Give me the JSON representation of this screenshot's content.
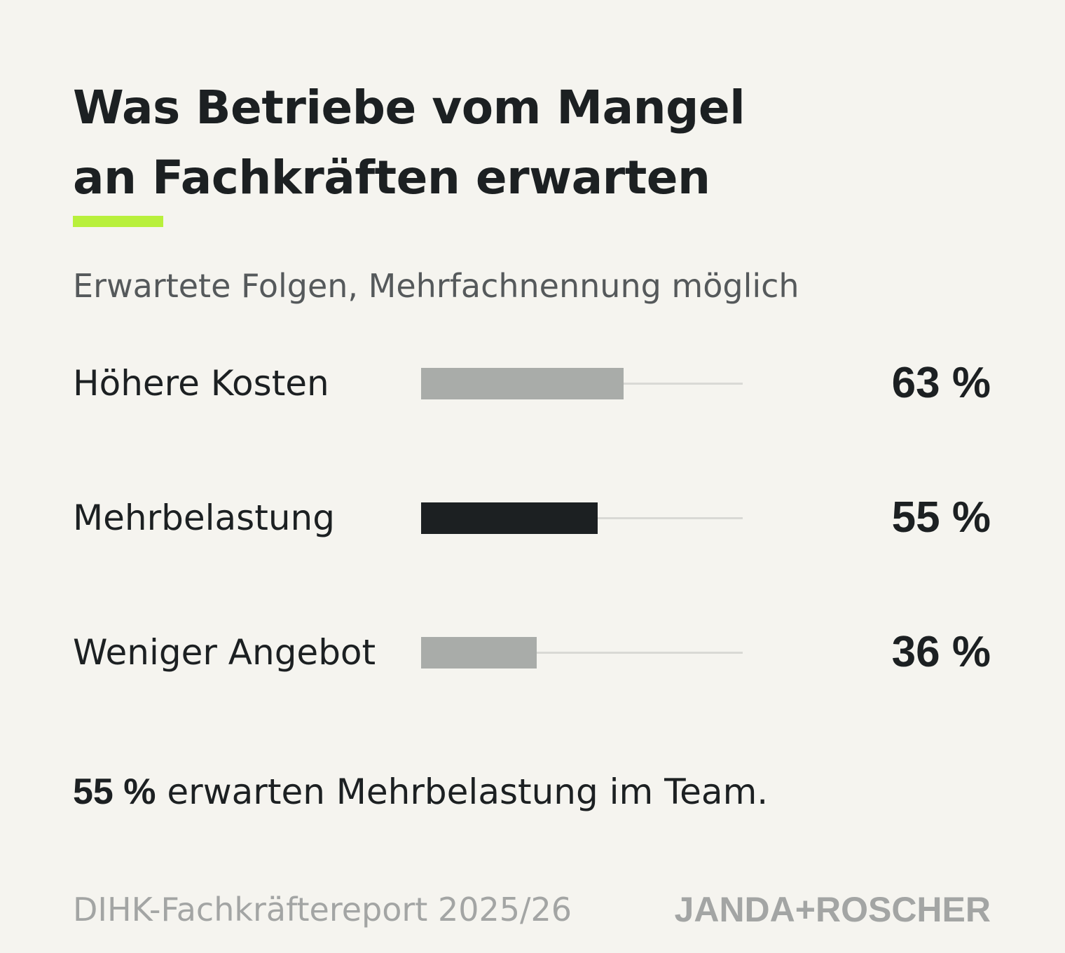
{
  "header": {
    "title_line1": "Was Betriebe vom Mangel",
    "title_line2": "an Fachkräften erwarten",
    "subtitle": "Erwartete Folgen, Mehrfachnennung möglich"
  },
  "colors": {
    "accent": "#b8f03c",
    "bar_default": "#a9aca9",
    "bar_highlight": "#1c2022",
    "track": "#d9d9d5",
    "text": "#1c2022",
    "muted": "#a3a5a4",
    "background": "#f5f4ef"
  },
  "chart_data": {
    "type": "bar",
    "orientation": "horizontal",
    "categories": [
      "Höhere Kosten",
      "Mehrbelastung",
      "Weniger Angebot"
    ],
    "values": [
      63,
      55,
      36
    ],
    "value_labels": [
      "63 %",
      "55 %",
      "36 %"
    ],
    "highlighted_category": "Mehrbelastung",
    "xlim": [
      0,
      100
    ],
    "unit": "%",
    "grid": false,
    "legend": "none"
  },
  "note": {
    "strong": "55 %",
    "text": " erwarten Mehrbelastung im Team."
  },
  "footer": {
    "source": "DIHK-Fachkräftereport 2025/26",
    "brand": "JANDA+ROSCHER"
  }
}
